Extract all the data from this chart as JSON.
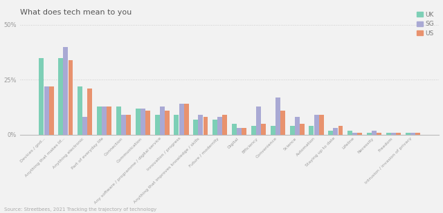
{
  "title": "What does tech mean to you",
  "categories": [
    "Devices / god...",
    "Anything that makes lif...",
    "Anything electronic",
    "Part of everyday life",
    "Connection",
    "Communication",
    "Any software / programme / digital service",
    "Innovation / progress",
    "Anything that improves knowledge / skills",
    "Future / modernity",
    "Digital",
    "Efficiency",
    "Convenience",
    "Science",
    "Automation",
    "Staying up to date",
    "Lifeline",
    "Necessity",
    "Freedom",
    "Intrusion / invasion of privacy"
  ],
  "UK": [
    35,
    35,
    22,
    13,
    13,
    12,
    9,
    9,
    7,
    7,
    5,
    4,
    4,
    4,
    4,
    2,
    2,
    1,
    1,
    1
  ],
  "SG": [
    22,
    40,
    8,
    13,
    9,
    12,
    13,
    14,
    9,
    8,
    3,
    13,
    17,
    8,
    9,
    3,
    1,
    2,
    1,
    1
  ],
  "US": [
    22,
    34,
    21,
    13,
    9,
    11,
    11,
    14,
    8,
    9,
    3,
    5,
    11,
    5,
    9,
    4,
    1,
    1,
    1,
    1
  ],
  "color_UK": "#7dcfb6",
  "color_SG": "#a9a9d4",
  "color_US": "#e8926e",
  "source": "Source: Streetbees, 2021 Tracking the trajectory of technology",
  "ylim": [
    0,
    52
  ],
  "yticks": [
    0,
    25,
    50
  ],
  "ytick_labels": [
    "0%",
    "25%",
    "50%"
  ],
  "background_color": "#f2f2f2",
  "grid_color": "#cccccc"
}
